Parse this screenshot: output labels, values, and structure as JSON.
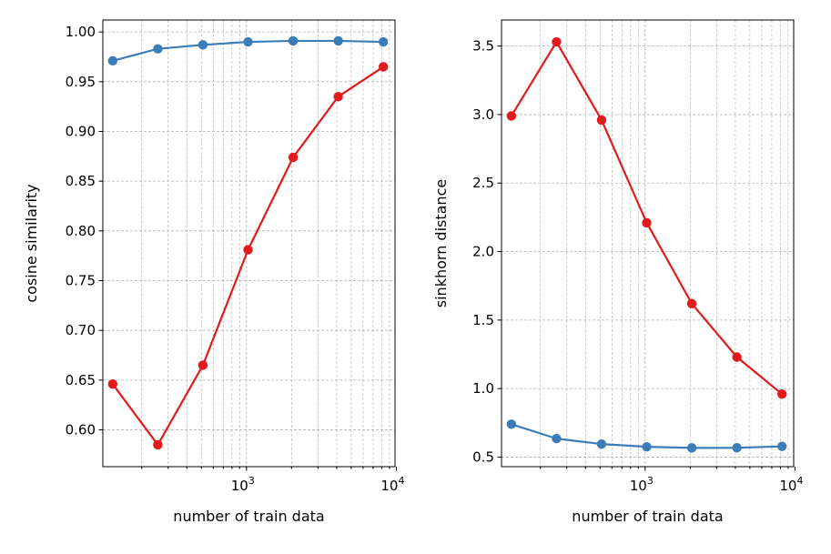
{
  "chart_data": [
    {
      "type": "line",
      "title": "",
      "xlabel": "number of train data",
      "ylabel": "cosine similarity",
      "xscale": "log",
      "xlim": [
        110,
        9800
      ],
      "ylim": [
        0.563,
        1.012
      ],
      "x": [
        128,
        256,
        512,
        1024,
        2048,
        4096,
        8192
      ],
      "xticks": [
        1000,
        10000
      ],
      "xtick_labels": [
        {
          "base": "10",
          "exp": "3"
        },
        {
          "base": "10",
          "exp": "4"
        }
      ],
      "yticks": [
        0.6,
        0.65,
        0.7,
        0.75,
        0.8,
        0.85,
        0.9,
        0.95,
        1.0
      ],
      "ytick_labels": [
        "0.60",
        "0.65",
        "0.70",
        "0.75",
        "0.80",
        "0.85",
        "0.90",
        "0.95",
        "1.00"
      ],
      "grid": true,
      "series": [
        {
          "name": "blue",
          "color": "#3b7db8",
          "values": [
            0.971,
            0.983,
            0.987,
            0.99,
            0.991,
            0.991,
            0.99
          ]
        },
        {
          "name": "red",
          "color": "#e31a1c",
          "values": [
            0.646,
            0.585,
            0.665,
            0.781,
            0.874,
            0.935,
            0.965
          ]
        }
      ]
    },
    {
      "type": "line",
      "title": "",
      "xlabel": "number of train data",
      "ylabel": "sinkhorn distance",
      "xscale": "log",
      "xlim": [
        110,
        9800
      ],
      "ylim": [
        0.43,
        3.69
      ],
      "x": [
        128,
        256,
        512,
        1024,
        2048,
        4096,
        8192
      ],
      "xticks": [
        1000,
        10000
      ],
      "xtick_labels": [
        {
          "base": "10",
          "exp": "3"
        },
        {
          "base": "10",
          "exp": "4"
        }
      ],
      "yticks": [
        0.5,
        1.0,
        1.5,
        2.0,
        2.5,
        3.0,
        3.5
      ],
      "ytick_labels": [
        "0.5",
        "1.0",
        "1.5",
        "2.0",
        "2.5",
        "3.0",
        "3.5"
      ],
      "grid": true,
      "series": [
        {
          "name": "blue",
          "color": "#3b7db8",
          "values": [
            0.74,
            0.635,
            0.595,
            0.575,
            0.567,
            0.568,
            0.578
          ]
        },
        {
          "name": "red",
          "color": "#e31a1c",
          "values": [
            2.99,
            3.53,
            2.96,
            2.21,
            1.62,
            1.23,
            0.96
          ]
        }
      ]
    }
  ]
}
